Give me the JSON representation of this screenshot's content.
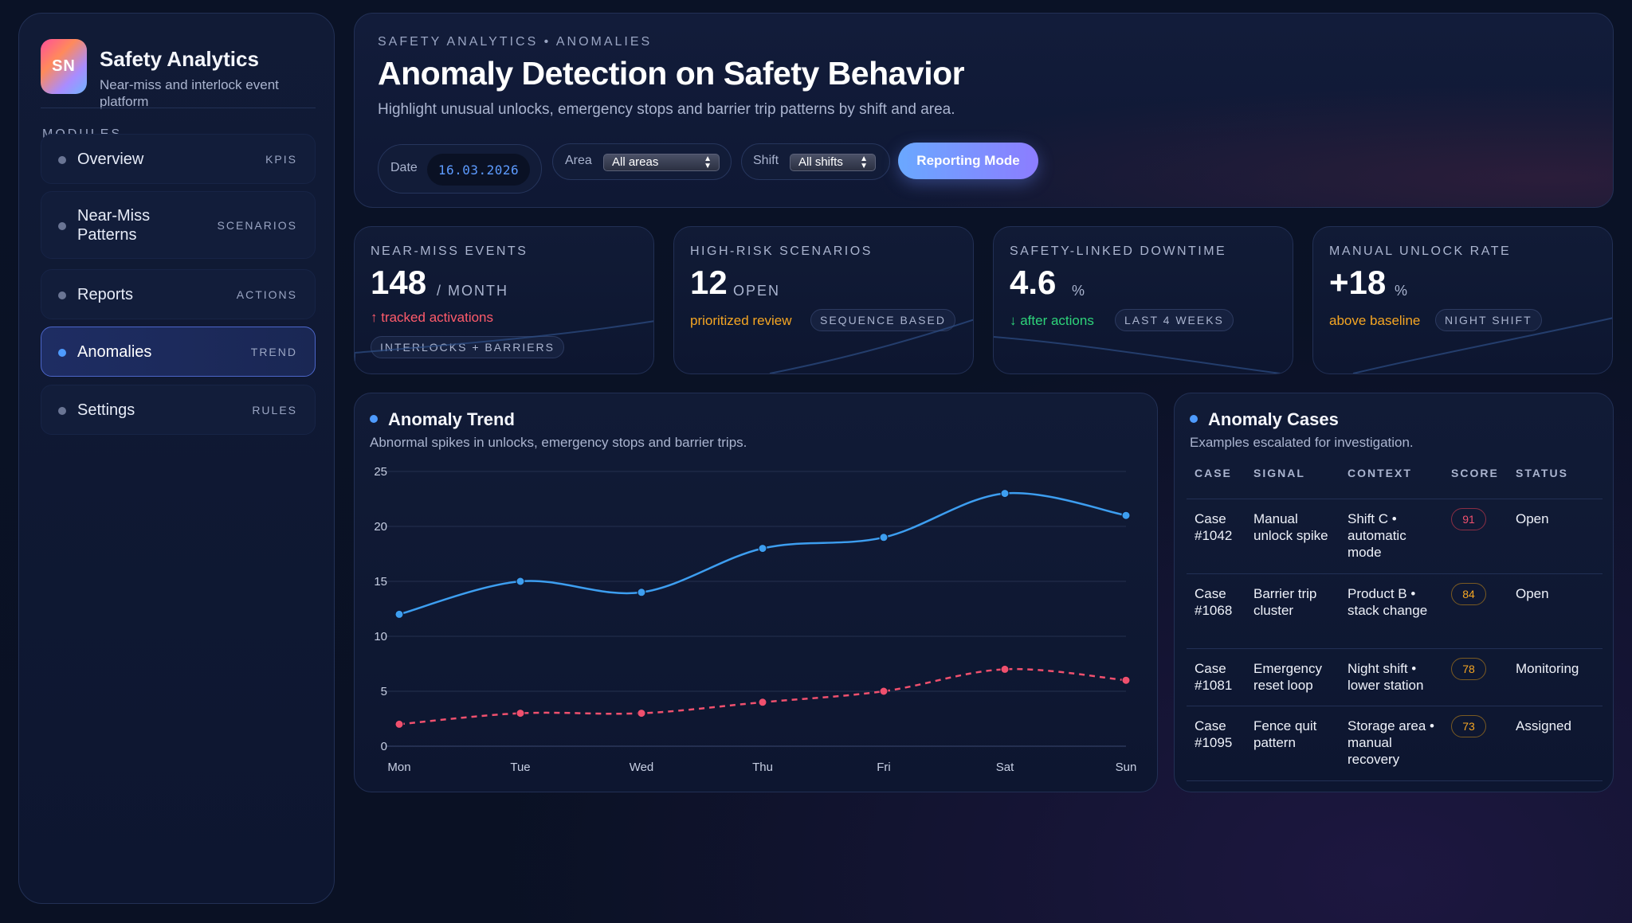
{
  "brand": {
    "logo": "SN",
    "title": "Safety Analytics",
    "subtitle": "Near-miss and interlock event platform"
  },
  "sidebar": {
    "section_label": "MODULES",
    "items": [
      {
        "label": "Overview",
        "tag": "KPIS",
        "active": false
      },
      {
        "label": "Near-Miss Patterns",
        "tag": "SCENARIOS",
        "active": false
      },
      {
        "label": "Reports",
        "tag": "ACTIONS",
        "active": false
      },
      {
        "label": "Anomalies",
        "tag": "TREND",
        "active": true
      },
      {
        "label": "Settings",
        "tag": "RULES",
        "active": false
      }
    ]
  },
  "header": {
    "breadcrumb": "SAFETY ANALYTICS • ANOMALIES",
    "title": "Anomaly Detection on Safety Behavior",
    "subtitle": "Highlight unusual unlocks, emergency stops and barrier trip patterns by shift and area.",
    "date_label": "Date",
    "date_value": "16.03.2026",
    "area_label": "Area",
    "area_value": "All areas",
    "shift_label": "Shift",
    "shift_value": "All shifts",
    "report_button": "Reporting Mode"
  },
  "kpis": [
    {
      "title": "NEAR-MISS EVENTS",
      "value": "148",
      "unit": "/ MONTH",
      "note": "↑ tracked activations",
      "note_color": "#ff5b6b",
      "chip": "INTERLOCKS + BARRIERS",
      "trend": "up"
    },
    {
      "title": "HIGH-RISK SCENARIOS",
      "value": "12",
      "unit": "OPEN",
      "note": "prioritized review",
      "note_color": "#f5a623",
      "chip": "SEQUENCE BASED",
      "trend": "up"
    },
    {
      "title": "SAFETY-LINKED DOWNTIME",
      "value": "4.6",
      "unit": "%",
      "note": "↓ after actions",
      "note_color": "#2ed47a",
      "chip": "LAST 4 WEEKS",
      "trend": "down"
    },
    {
      "title": "MANUAL UNLOCK RATE",
      "value": "+18",
      "unit": "%",
      "note": "above baseline",
      "note_color": "#f5a623",
      "chip": "NIGHT SHIFT",
      "trend": "up"
    }
  ],
  "trend_panel": {
    "title": "Anomaly Trend",
    "subtitle": "Abnormal spikes in unlocks, emergency stops and barrier trips."
  },
  "chart_data": {
    "type": "line",
    "categories": [
      "Mon",
      "Tue",
      "Wed",
      "Thu",
      "Fri",
      "Sat",
      "Sun"
    ],
    "series": [
      {
        "values": [
          12,
          15,
          14,
          18,
          19,
          23,
          21
        ],
        "color": "#3d9ef0",
        "style": "solid"
      },
      {
        "values": [
          2,
          3,
          3,
          4,
          5,
          7,
          6
        ],
        "color": "#f0506e",
        "style": "dashed"
      }
    ],
    "yticks": [
      0,
      5,
      10,
      15,
      20,
      25
    ],
    "ylim": [
      0,
      25
    ],
    "grid": true,
    "legend": "none"
  },
  "cases_panel": {
    "title": "Anomaly Cases",
    "subtitle": "Examples escalated for investigation.",
    "columns": [
      "CASE",
      "SIGNAL",
      "CONTEXT",
      "SCORE",
      "STATUS"
    ],
    "rows": [
      {
        "case": "Case #1042",
        "signal": "Manual unlock spike",
        "context": "Shift C • automatic mode",
        "score": "91",
        "score_color": "#f0506e",
        "status": "Open"
      },
      {
        "case": "Case #1068",
        "signal": "Barrier trip cluster",
        "context": "Product B • stack change",
        "score": "84",
        "score_color": "#f5a623",
        "status": "Open"
      },
      {
        "case": "Case #1081",
        "signal": "Emergency reset loop",
        "context": "Night shift • lower station",
        "score": "78",
        "score_color": "#f5a623",
        "status": "Monitoring"
      },
      {
        "case": "Case #1095",
        "signal": "Fence quit pattern",
        "context": "Storage area • manual recovery",
        "score": "73",
        "score_color": "#f5a623",
        "status": "Assigned"
      }
    ]
  }
}
